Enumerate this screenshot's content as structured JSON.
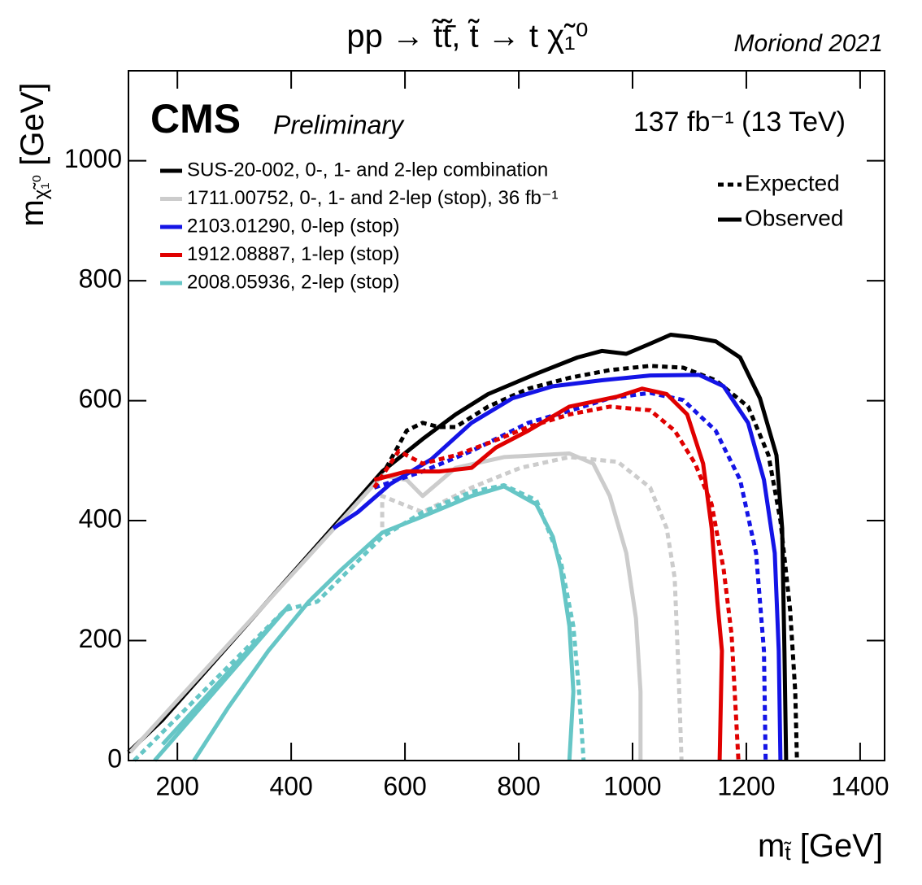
{
  "chart_data": {
    "type": "contour",
    "title": "pp → t̃t̃̄,  t̃ → t χ̃₁⁰",
    "note": "Moriond 2021",
    "experiment": "CMS",
    "status": "Preliminary",
    "lumi": "137 fb⁻¹ (13 TeV)",
    "x_label": [
      "m",
      "t̃",
      " [GeV]"
    ],
    "y_label": [
      "m",
      "χ̃₁⁰",
      " [GeV]"
    ],
    "xlim": [
      114,
      1443
    ],
    "ylim": [
      0,
      1150
    ],
    "xticks": [
      200,
      400,
      600,
      800,
      1000,
      1200,
      1400
    ],
    "yticks": [
      0,
      200,
      400,
      600,
      800,
      1000
    ],
    "style_legend": [
      {
        "label": "Expected",
        "style": "dashed"
      },
      {
        "label": "Observed",
        "style": "solid"
      }
    ],
    "series": [
      {
        "name": "SUS-20-002, 0-, 1- and 2-lep combination",
        "color": "#000000",
        "lines": [
          {
            "style": "dashed",
            "x": [
              567,
              603,
              631,
              660,
              689,
              746,
              817,
              889,
              960,
              1031,
              1089,
              1146,
              1203,
              1239,
              1260,
              1277,
              1286,
              1289
            ],
            "y": [
              488,
              550,
              563,
              556,
              556,
              590,
              620,
              638,
              651,
              658,
              655,
              634,
              590,
              509,
              400,
              251,
              115,
              0
            ]
          },
          {
            "style": "solid",
            "x": [
              114,
              174,
              496,
              560,
              631,
              689,
              746,
              831,
              903,
              946,
              989,
              1031,
              1067,
              1103,
              1146,
              1189,
              1224,
              1253,
              1263,
              1267,
              1270
            ],
            "y": [
              14,
              68,
              413,
              482,
              536,
              577,
              611,
              645,
              672,
              683,
              678,
              695,
              710,
              706,
              699,
              672,
              604,
              509,
              387,
              183,
              0
            ]
          }
        ]
      },
      {
        "name": "1711.00752, 0-, 1- and 2-lep (stop), 36 fb⁻¹",
        "color": "#cccccc",
        "lines": [
          {
            "style": "dashed",
            "x": [
              560,
              560,
              631,
              717,
              803,
              889,
              974,
              1031,
              1060,
              1074,
              1081,
              1086
            ],
            "y": [
              389,
              441,
              414,
              455,
              488,
              506,
              498,
              455,
              387,
              305,
              142,
              0
            ]
          },
          {
            "style": "solid",
            "x": [
              117,
              560,
              603,
              631,
              689,
              774,
              889,
              931,
              960,
              989,
              1006,
              1014,
              1014
            ],
            "y": [
              14,
              475,
              468,
              441,
              488,
              506,
              512,
              495,
              441,
              346,
              237,
              115,
              0
            ]
          }
        ]
      },
      {
        "name": "2103.01290, 0-lep (stop)",
        "color": "#1414e6",
        "lines": [
          {
            "style": "dashed",
            "x": [
              546,
              631,
              717,
              817,
              889,
              960,
              1031,
              1089,
              1146,
              1189,
              1217,
              1231,
              1234
            ],
            "y": [
              455,
              482,
              516,
              563,
              583,
              604,
              613,
              601,
              550,
              468,
              346,
              183,
              0
            ]
          },
          {
            "style": "solid",
            "x": [
              474,
              517,
              574,
              646,
              717,
              789,
              860,
              946,
              1031,
              1117,
              1160,
              1203,
              1231,
              1250,
              1257,
              1260
            ],
            "y": [
              387,
              414,
              461,
              502,
              563,
              604,
              624,
              634,
              642,
              643,
              624,
              563,
              468,
              346,
              183,
              0
            ]
          }
        ]
      },
      {
        "name": "1912.08887, 1-lep (stop)",
        "color": "#e00000",
        "lines": [
          {
            "style": "dashed",
            "x": [
              546,
              589,
              631,
              689,
              746,
              817,
              889,
              960,
              1031,
              1074,
              1110,
              1139,
              1160,
              1174,
              1181,
              1186
            ],
            "y": [
              455,
              516,
              495,
              509,
              529,
              556,
              577,
              590,
              584,
              550,
              495,
              427,
              319,
              210,
              88,
              0
            ]
          },
          {
            "style": "solid",
            "x": [
              546,
              603,
              660,
              717,
              760,
              817,
              889,
              974,
              1017,
              1060,
              1096,
              1124,
              1139,
              1149,
              1157,
              1153
            ],
            "y": [
              468,
              482,
              482,
              488,
              522,
              550,
              590,
              607,
              620,
              611,
              577,
              495,
              387,
              265,
              183,
              0
            ]
          }
        ]
      },
      {
        "name": "2008.05936, 2-lep (stop)",
        "color": "#66c6c6",
        "lines": [
          {
            "style": "dashed",
            "x": [
              124,
              389,
              446,
              503,
              560,
              631,
              717,
              774,
              831,
              874,
              896,
              906,
              914
            ],
            "y": [
              0,
              251,
              265,
              319,
              373,
              414,
              448,
              459,
              434,
              332,
              224,
              115,
              0
            ]
          },
          {
            "style": "solid",
            "x": [
              160,
              396,
              174,
              null,
              229,
              289,
              360,
              431,
              489,
              560,
              631,
              717,
              774,
              831,
              860,
              874,
              889,
              896,
              889
            ],
            "y": [
              0,
              258,
              27,
              null,
              0,
              88,
              183,
              265,
              319,
              380,
              407,
              441,
              457,
              427,
              373,
              319,
              224,
              115,
              0
            ]
          }
        ]
      }
    ]
  }
}
